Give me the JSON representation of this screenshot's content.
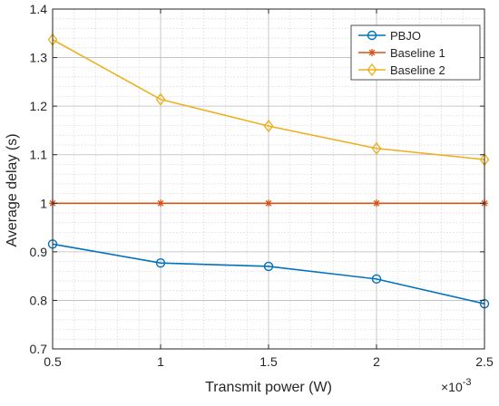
{
  "chart_data": {
    "type": "line",
    "x": [
      0.5,
      1,
      1.5,
      2,
      2.5
    ],
    "series": [
      {
        "name": "PBJO",
        "values": [
          0.916,
          0.877,
          0.87,
          0.844,
          0.793
        ],
        "color": "#0072BD",
        "marker": "circle"
      },
      {
        "name": "Baseline 1",
        "values": [
          1.0,
          1.0,
          1.0,
          1.0,
          1.0
        ],
        "color": "#D95319",
        "marker": "asterisk"
      },
      {
        "name": "Baseline 2",
        "values": [
          1.337,
          1.214,
          1.159,
          1.113,
          1.09
        ],
        "color": "#EDB120",
        "marker": "diamond"
      }
    ],
    "xlabel": "Transmit power (W)",
    "ylabel": "Average delay (s)",
    "x_multiplier": "×10",
    "x_multiplier_exp": "-3",
    "xlim": [
      0.5,
      2.5
    ],
    "ylim": [
      0.7,
      1.4
    ],
    "xticks": [
      0.5,
      1,
      1.5,
      2,
      2.5
    ],
    "xtick_labels": [
      "0.5",
      "1",
      "1.5",
      "2",
      "2.5"
    ],
    "yticks": [
      0.7,
      0.8,
      0.9,
      1.0,
      1.1,
      1.2,
      1.3,
      1.4
    ],
    "ytick_labels": [
      "0.7",
      "0.8",
      "0.9",
      "1",
      "1.1",
      "1.2",
      "1.3",
      "1.4"
    ],
    "grid": true,
    "minor_grid": true,
    "legend_position": "top-right"
  }
}
